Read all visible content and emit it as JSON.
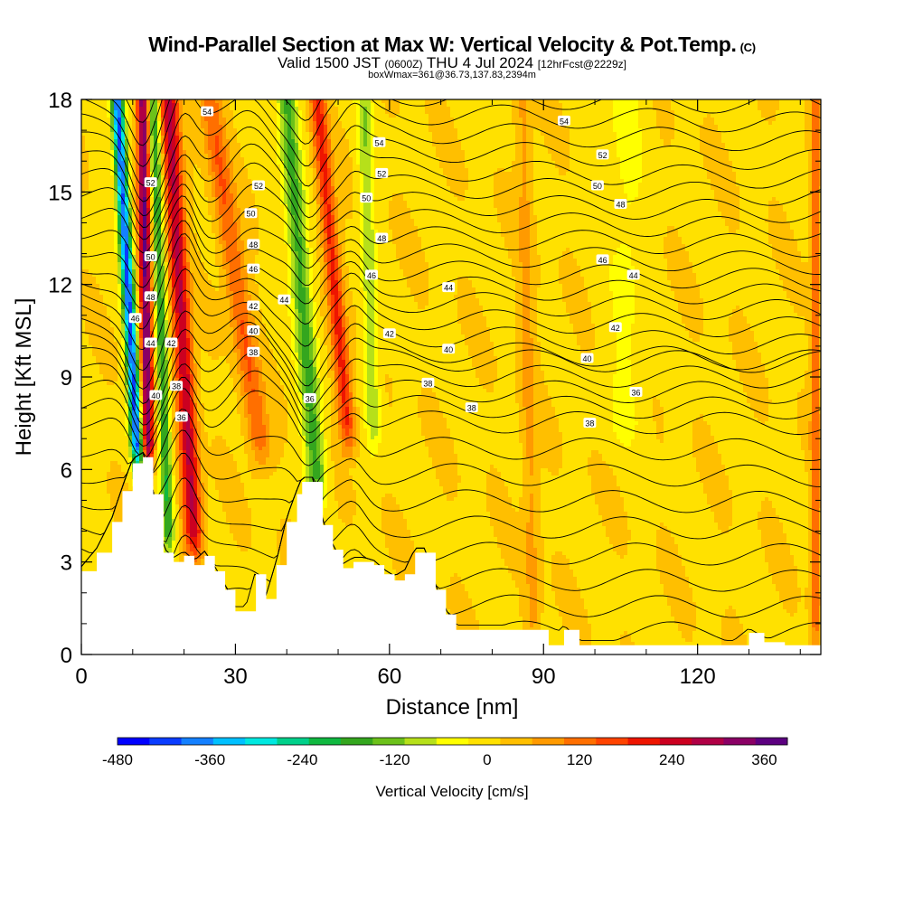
{
  "header": {
    "title": "Wind-Parallel Section at Max W: Vertical Velocity & Pot.Temp.",
    "copyright": "(C)",
    "valid_prefix": "Valid 1500 JST",
    "valid_utc": "(0600Z)",
    "valid_date": "THU 4 Jul 2024",
    "forecast": "[12hrFcst@2229z]",
    "box_info": "boxWmax=361@36.73,137.83,2394m"
  },
  "chart_data": {
    "type": "heatmap",
    "title": "Wind-Parallel Section at Max W: Vertical Velocity & Pot.Temp.",
    "xlabel": "Distance [nm]",
    "ylabel": "Height [Kft MSL]",
    "xlim": [
      0,
      144
    ],
    "ylim": [
      0,
      18
    ],
    "x_ticks": [
      "0",
      "30",
      "60",
      "90",
      "120"
    ],
    "y_ticks": [
      "0",
      "3",
      "6",
      "9",
      "12",
      "15",
      "18"
    ],
    "colorbar": {
      "label": "Vertical Velocity [cm/s]",
      "range": [
        -480,
        390
      ],
      "tick_values": [
        -480,
        -360,
        -240,
        -120,
        0,
        120,
        240,
        360
      ],
      "tick_labels": [
        "-480",
        "-360",
        "-240",
        "-120",
        "0",
        "120",
        "240",
        "360"
      ],
      "colors": [
        "#0000ff",
        "#0a3cff",
        "#1480ff",
        "#00c0ff",
        "#00e8e0",
        "#00d08a",
        "#10b840",
        "#34a61e",
        "#6cc11a",
        "#b6e01a",
        "#ffff00",
        "#ffe100",
        "#ffbf00",
        "#ff9a00",
        "#ff6f00",
        "#ff4300",
        "#ee1500",
        "#cc0020",
        "#b00045",
        "#8a0065",
        "#5c0080"
      ]
    },
    "terrain_profile": {
      "x": [
        0,
        3,
        6,
        8,
        10,
        12,
        14,
        16,
        18,
        20,
        22,
        24,
        26,
        28,
        30,
        32,
        34,
        36,
        38,
        40,
        42,
        43,
        45,
        47,
        49,
        51,
        53,
        55,
        57,
        59,
        61,
        63,
        65,
        67,
        69,
        71,
        73,
        76,
        80,
        85,
        88,
        91,
        94,
        97,
        100,
        105,
        110,
        115,
        120,
        127,
        130,
        133,
        137,
        141,
        144
      ],
      "height_kft": [
        2.7,
        3.3,
        4.3,
        5.3,
        6.2,
        6.4,
        5.2,
        3.3,
        3.0,
        3.2,
        2.9,
        3.2,
        2.7,
        2.1,
        1.4,
        1.4,
        2.6,
        1.8,
        2.9,
        4.3,
        5.2,
        5.6,
        5.6,
        4.2,
        3.4,
        2.8,
        3.0,
        3.0,
        2.9,
        2.6,
        2.4,
        2.6,
        3.3,
        3.3,
        2.1,
        1.3,
        0.8,
        0.8,
        0.8,
        0.8,
        0.8,
        0.3,
        0.8,
        0.3,
        0.3,
        0.3,
        0.3,
        0.3,
        0.3,
        0.3,
        0.7,
        0.4,
        0.3,
        0.3,
        0.3
      ]
    },
    "vertical_velocity_bands": [
      {
        "x_bottom": 11,
        "x_top": 7,
        "x_bottom_height": 6.3,
        "peak_cm_s": -420,
        "half_width_nm": 1.2
      },
      {
        "x_bottom": 13,
        "x_top": 12,
        "x_bottom_height": 6.3,
        "peak_cm_s": 340,
        "half_width_nm": 1.2
      },
      {
        "x_bottom": 17,
        "x_top": 14,
        "x_bottom_height": 3.5,
        "peak_cm_s": -200,
        "half_width_nm": 1.2
      },
      {
        "x_bottom": 22,
        "x_top": 17,
        "x_bottom_height": 3.5,
        "peak_cm_s": 260,
        "half_width_nm": 1.8
      },
      {
        "x_bottom": 35,
        "x_top": 25,
        "x_bottom_height": 6.5,
        "peak_cm_s": 130,
        "half_width_nm": 2.2
      },
      {
        "x_bottom": 46,
        "x_top": 40,
        "x_bottom_height": 5.3,
        "peak_cm_s": -180,
        "half_width_nm": 2.0
      },
      {
        "x_bottom": 52,
        "x_top": 46,
        "x_bottom_height": 7.0,
        "peak_cm_s": 190,
        "half_width_nm": 1.6
      },
      {
        "x_bottom": 57,
        "x_top": 55,
        "x_bottom_height": 7.0,
        "peak_cm_s": -110,
        "half_width_nm": 1.5
      },
      {
        "x_bottom": 88,
        "x_top": 86,
        "x_bottom_height": 0.5,
        "peak_cm_s": 60,
        "half_width_nm": 1.5
      },
      {
        "x_bottom": 106,
        "x_top": 106,
        "x_bottom_height": 7.0,
        "peak_cm_s": -45,
        "half_width_nm": 4.0
      },
      {
        "x_bottom": 143,
        "x_top": 143,
        "x_bottom_height": 0.5,
        "peak_cm_s": 120,
        "half_width_nm": 1.0
      }
    ],
    "potential_temperature_contours": {
      "units": "degC",
      "levels": [
        36,
        38,
        40,
        42,
        44,
        46,
        48,
        50,
        52,
        54
      ],
      "labels": [
        {
          "x": 19.5,
          "y": 7.7,
          "text": "36"
        },
        {
          "x": 44.5,
          "y": 8.3,
          "text": "36"
        },
        {
          "x": 108,
          "y": 8.5,
          "text": "36"
        },
        {
          "x": 18.5,
          "y": 8.7,
          "text": "38"
        },
        {
          "x": 33.5,
          "y": 9.8,
          "text": "38"
        },
        {
          "x": 67.5,
          "y": 8.8,
          "text": "38"
        },
        {
          "x": 76,
          "y": 8.0,
          "text": "38"
        },
        {
          "x": 99,
          "y": 7.5,
          "text": "38"
        },
        {
          "x": 14.5,
          "y": 8.4,
          "text": "40"
        },
        {
          "x": 33.5,
          "y": 10.5,
          "text": "40"
        },
        {
          "x": 71.5,
          "y": 9.9,
          "text": "40"
        },
        {
          "x": 98.5,
          "y": 9.6,
          "text": "40"
        },
        {
          "x": 17.5,
          "y": 10.1,
          "text": "42"
        },
        {
          "x": 33.5,
          "y": 11.3,
          "text": "42"
        },
        {
          "x": 60,
          "y": 10.4,
          "text": "42"
        },
        {
          "x": 104,
          "y": 10.6,
          "text": "42"
        },
        {
          "x": 13.5,
          "y": 10.1,
          "text": "44"
        },
        {
          "x": 39.5,
          "y": 11.5,
          "text": "44"
        },
        {
          "x": 71.5,
          "y": 11.9,
          "text": "44"
        },
        {
          "x": 107.5,
          "y": 12.3,
          "text": "44"
        },
        {
          "x": 10.5,
          "y": 10.9,
          "text": "46"
        },
        {
          "x": 33.5,
          "y": 12.5,
          "text": "46"
        },
        {
          "x": 56.5,
          "y": 12.3,
          "text": "46"
        },
        {
          "x": 101.5,
          "y": 12.8,
          "text": "46"
        },
        {
          "x": 13.5,
          "y": 11.6,
          "text": "48"
        },
        {
          "x": 33.5,
          "y": 13.3,
          "text": "48"
        },
        {
          "x": 58.5,
          "y": 13.5,
          "text": "48"
        },
        {
          "x": 105,
          "y": 14.6,
          "text": "48"
        },
        {
          "x": 13.5,
          "y": 12.9,
          "text": "50"
        },
        {
          "x": 33,
          "y": 14.3,
          "text": "50"
        },
        {
          "x": 55.5,
          "y": 14.8,
          "text": "50"
        },
        {
          "x": 100.5,
          "y": 15.2,
          "text": "50"
        },
        {
          "x": 13.5,
          "y": 15.3,
          "text": "52"
        },
        {
          "x": 34.5,
          "y": 15.2,
          "text": "52"
        },
        {
          "x": 58.5,
          "y": 15.6,
          "text": "52"
        },
        {
          "x": 101.5,
          "y": 16.2,
          "text": "52"
        },
        {
          "x": 24.5,
          "y": 17.6,
          "text": "54"
        },
        {
          "x": 58,
          "y": 16.6,
          "text": "54"
        },
        {
          "x": 94,
          "y": 17.3,
          "text": "54"
        }
      ]
    }
  }
}
